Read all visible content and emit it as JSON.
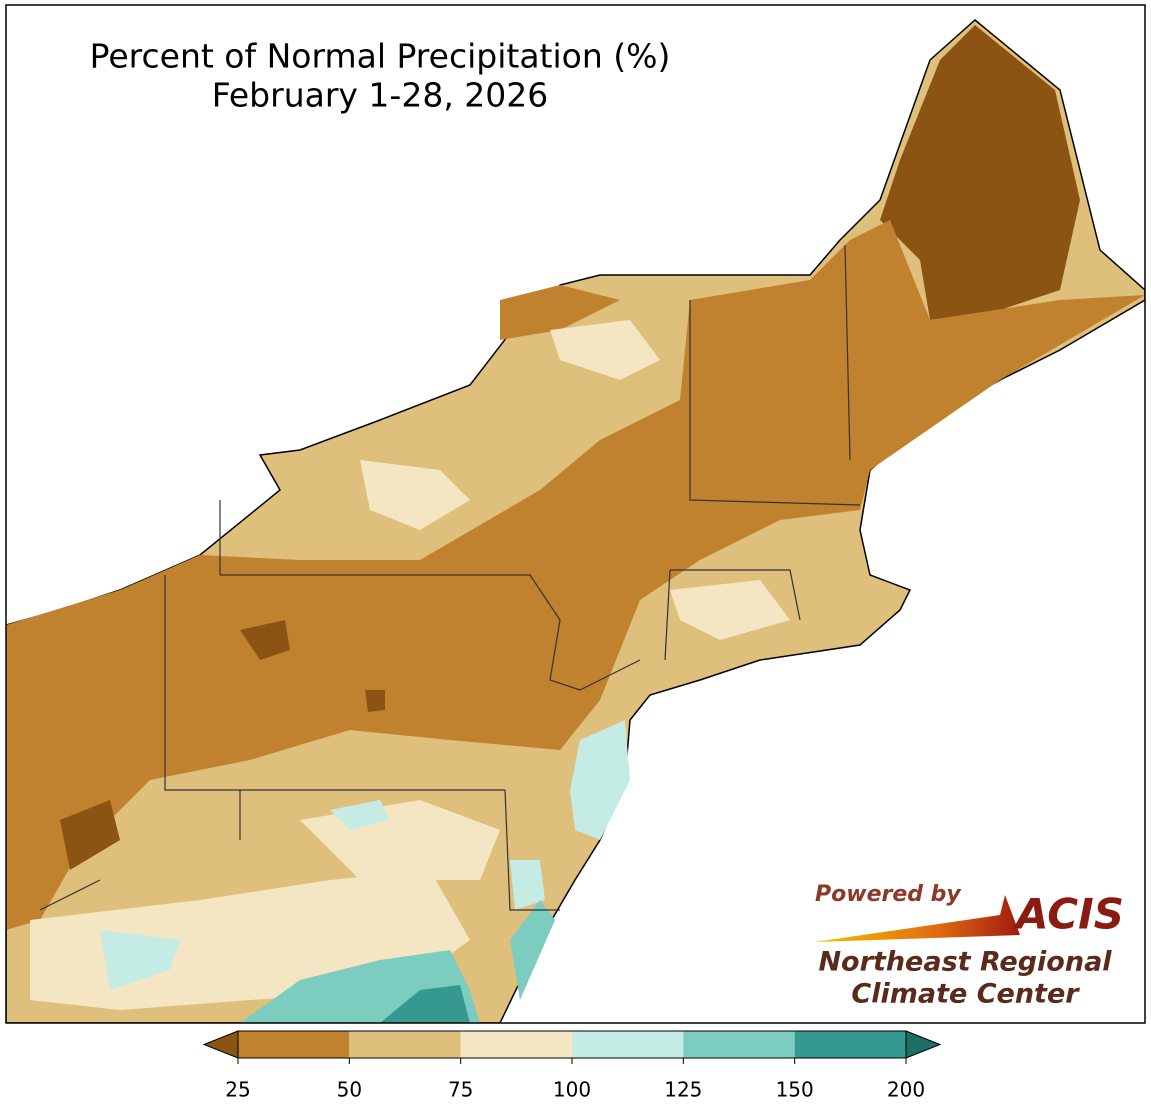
{
  "header": {
    "title": [
      "Percent of Normal Precipitation (%)",
      "February 1-28, 2026"
    ]
  },
  "colorbar": {
    "ticks": [
      25,
      50,
      75,
      100,
      125,
      150,
      200
    ],
    "under_color": "#8b5413",
    "colors": [
      "#c0822f",
      "#dfbf7c",
      "#f5e6c3",
      "#c4ebe4",
      "#7ccdc0",
      "#35998f"
    ],
    "over_color": "#1e6e66"
  },
  "logo": {
    "powered": "Powered by",
    "brand": "ACIS",
    "line1": "Northeast Regional",
    "line2": "Climate Center"
  }
}
